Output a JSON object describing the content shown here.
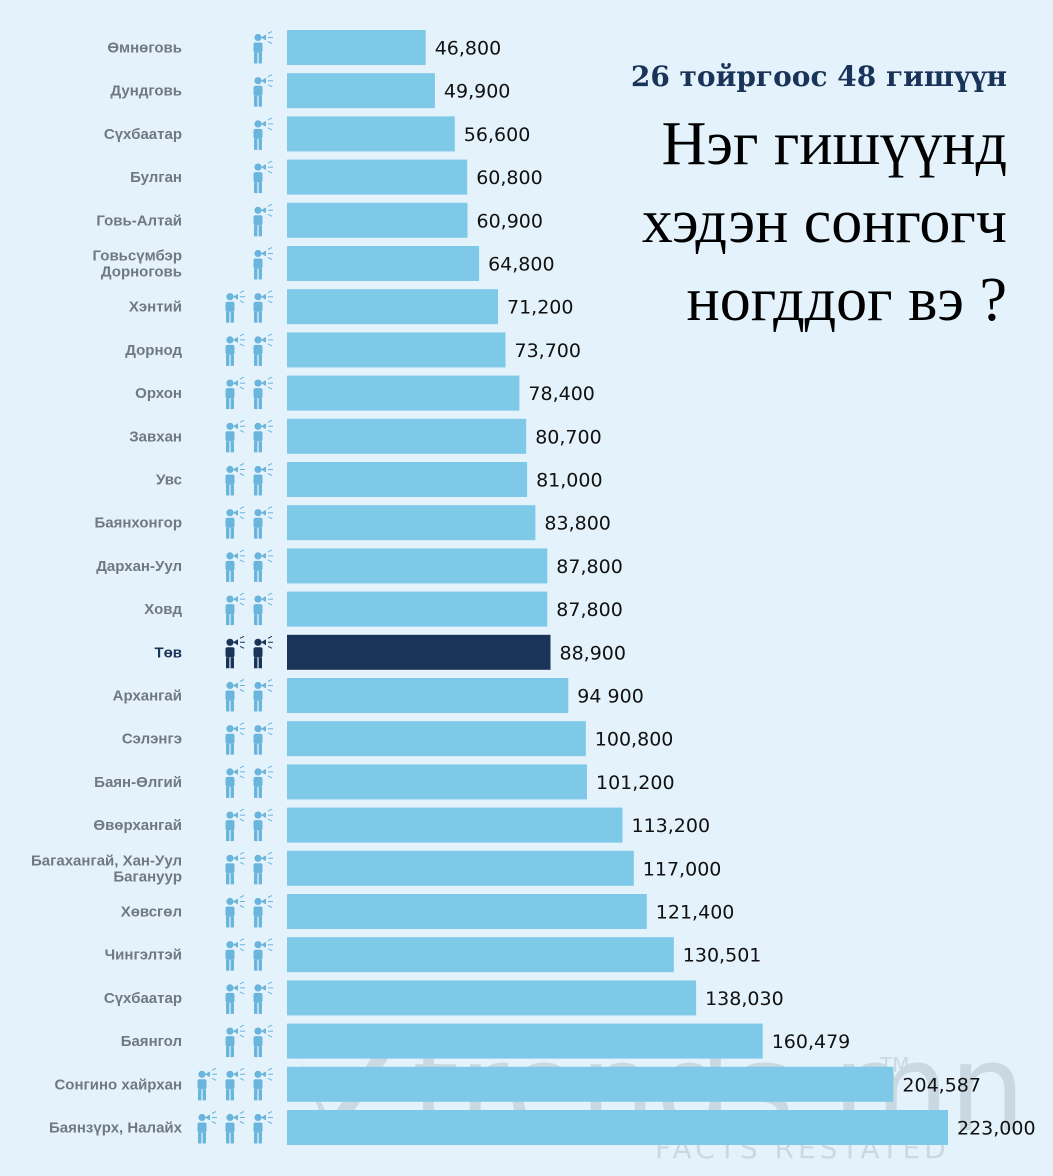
{
  "header": {
    "subtitle": "26 тойргоос 48 гишүүн",
    "title": "Нэг гишүүнд хэдэн сонгогч ногддог вэ ?"
  },
  "watermark": {
    "brand": "trends.mn",
    "trademark": "TM",
    "tagline": "FACTS RESTATED"
  },
  "colors": {
    "background": "#e4f3fb",
    "bar": "#7ec8e8",
    "bar_highlight": "#1a3358",
    "icon": "#6ab5dc",
    "icon_highlight": "#1a3358",
    "label": "#707880",
    "watermark": "#8a96a3"
  },
  "icon_name": "person-with-megaphone-icon",
  "chart_data": {
    "type": "bar",
    "orientation": "horizontal",
    "categories": [
      "Өмнөговь",
      "Дундговь",
      "Сүхбаатар",
      "Булган",
      "Говь-Алтай",
      "Говьсүмбэр\nДорноговь",
      "Хэнтий",
      "Дорнод",
      "Орхон",
      "Завхан",
      "Увс",
      "Баянхонгор",
      "Дархан-Уул",
      "Ховд",
      "Төв",
      "Архангай",
      "Сэлэнгэ",
      "Баян-Өлгий",
      "Өвөрхангай",
      "Багахангай, Хан-Уул\nБаганууp",
      "Хөвсгөл",
      "Чингэлтэй",
      "Сүхбаатар",
      "Баянгол",
      "Сонгино хайрхан",
      "Баянзүрх, Налайх"
    ],
    "values": [
      46800,
      49900,
      56600,
      60800,
      60900,
      64800,
      71200,
      73700,
      78400,
      80700,
      81000,
      83800,
      87800,
      87800,
      88900,
      94900,
      100800,
      101200,
      113200,
      117000,
      121400,
      130501,
      138030,
      160479,
      204587,
      223000
    ],
    "value_labels": [
      "46,800",
      "49,900",
      "56,600",
      "60,800",
      "60,900",
      "64,800",
      "71,200",
      "73,700",
      "78,400",
      "80,700",
      "81,000",
      "83,800",
      "87,800",
      "87,800",
      "88,900",
      "94 900",
      "100,800",
      "101,200",
      "113,200",
      "117,000",
      "121,400",
      "130,501",
      "138,030",
      "160,479",
      "204,587",
      "223,000"
    ],
    "members": [
      1,
      1,
      1,
      1,
      1,
      1,
      2,
      2,
      2,
      2,
      2,
      2,
      2,
      2,
      2,
      2,
      2,
      2,
      2,
      2,
      2,
      2,
      2,
      2,
      3,
      3
    ],
    "highlight_index": 14,
    "xlim": [
      0,
      223000
    ],
    "grid": false
  }
}
